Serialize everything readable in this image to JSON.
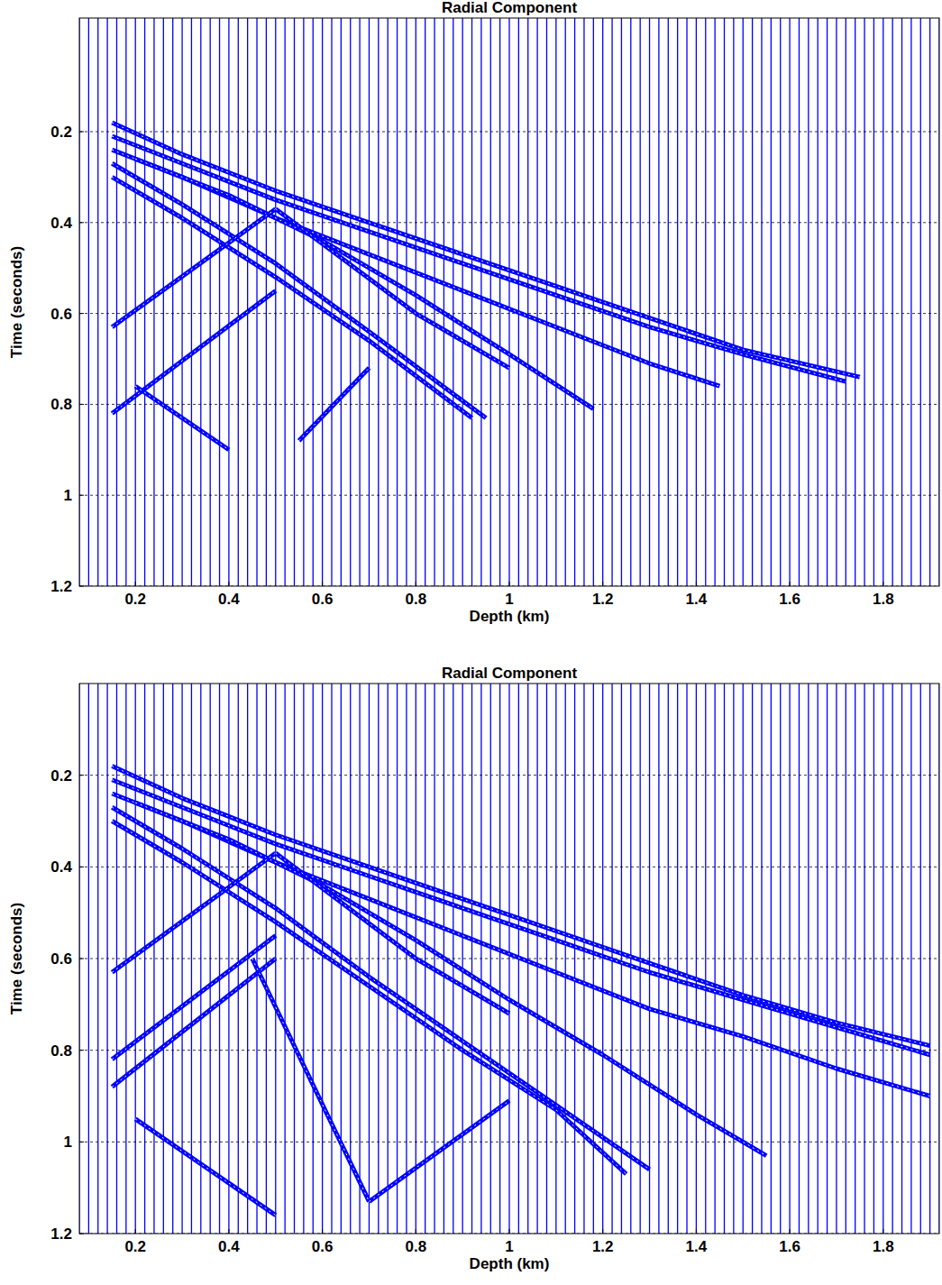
{
  "chart_data": [
    {
      "type": "line",
      "title": "Radial Component",
      "x_label": "Depth (km)",
      "y_label": "Time (seconds)",
      "xlim": [
        0.08,
        1.92
      ],
      "ylim": [
        -0.05,
        1.2
      ],
      "xticks": [
        0.2,
        0.4,
        0.6,
        0.8,
        1,
        1.2,
        1.4,
        1.6,
        1.8
      ],
      "yticks": [
        0.2,
        0.4,
        0.6,
        0.8,
        1,
        1.2
      ],
      "grid": true,
      "color": "#0000ff",
      "traces": [
        0.08,
        0.1,
        0.12,
        0.14,
        0.16,
        0.18,
        0.2,
        0.22,
        0.24,
        0.26,
        0.28,
        0.3,
        0.32,
        0.34,
        0.36,
        0.38,
        0.4,
        0.42,
        0.44,
        0.46,
        0.48,
        0.5,
        0.52,
        0.54,
        0.56,
        0.58,
        0.6,
        0.62,
        0.64,
        0.66,
        0.68,
        0.7,
        0.72,
        0.74,
        0.76,
        0.78,
        0.8,
        0.82,
        0.84,
        0.86,
        0.88,
        0.9,
        0.92,
        0.94,
        0.96,
        0.98,
        1,
        1.02,
        1.04,
        1.06,
        1.08,
        1.1,
        1.12,
        1.14,
        1.16,
        1.18,
        1.2,
        1.22,
        1.24,
        1.26,
        1.28,
        1.3,
        1.32,
        1.34,
        1.36,
        1.38,
        1.4,
        1.42,
        1.44,
        1.46,
        1.48,
        1.5,
        1.52,
        1.54,
        1.56,
        1.58,
        1.6,
        1.62,
        1.64,
        1.66,
        1.68,
        1.7,
        1.72,
        1.74,
        1.76,
        1.78,
        1.8,
        1.82,
        1.84,
        1.86,
        1.88,
        1.9,
        1.92
      ],
      "series": [
        {
          "x": [
            0.15,
            0.3,
            0.5,
            0.7,
            0.9,
            1.1,
            1.3,
            1.5,
            1.75
          ],
          "values": [
            0.18,
            0.25,
            0.33,
            0.4,
            0.47,
            0.54,
            0.61,
            0.68,
            0.74
          ]
        },
        {
          "x": [
            0.15,
            0.3,
            0.5,
            0.7,
            0.9,
            1.1,
            1.3,
            1.5,
            1.72
          ],
          "values": [
            0.21,
            0.27,
            0.35,
            0.42,
            0.49,
            0.56,
            0.63,
            0.69,
            0.75
          ]
        },
        {
          "x": [
            0.15,
            0.3,
            0.5,
            0.7,
            0.9,
            1.1,
            1.3,
            1.45
          ],
          "values": [
            0.24,
            0.3,
            0.39,
            0.47,
            0.55,
            0.63,
            0.71,
            0.76
          ]
        },
        {
          "x": [
            0.15,
            0.3,
            0.5,
            0.7,
            0.95
          ],
          "values": [
            0.27,
            0.36,
            0.49,
            0.64,
            0.83
          ]
        },
        {
          "x": [
            0.15,
            0.3,
            0.5,
            0.7,
            0.92
          ],
          "values": [
            0.3,
            0.39,
            0.52,
            0.66,
            0.83
          ]
        },
        {
          "x": [
            0.2,
            0.4,
            0.6,
            0.8,
            1,
            1.18
          ],
          "values": [
            0.26,
            0.34,
            0.44,
            0.56,
            0.69,
            0.81
          ]
        },
        {
          "x": [
            0.15,
            0.5
          ],
          "values": [
            0.63,
            0.37
          ]
        },
        {
          "x": [
            0.15,
            0.5
          ],
          "values": [
            0.82,
            0.55
          ]
        },
        {
          "x": [
            0.5,
            0.8,
            1
          ],
          "values": [
            0.37,
            0.6,
            0.72
          ]
        },
        {
          "x": [
            0.2,
            0.4
          ],
          "values": [
            0.76,
            0.9
          ]
        },
        {
          "x": [
            0.55,
            0.7
          ],
          "values": [
            0.88,
            0.72
          ]
        }
      ]
    },
    {
      "type": "line",
      "title": "Radial Component",
      "x_label": "Depth (km)",
      "y_label": "Time (seconds)",
      "xlim": [
        0.08,
        1.92
      ],
      "ylim": [
        0,
        1.2
      ],
      "xticks": [
        0.2,
        0.4,
        0.6,
        0.8,
        1,
        1.2,
        1.4,
        1.6,
        1.8
      ],
      "yticks": [
        0.2,
        0.4,
        0.6,
        0.8,
        1,
        1.2
      ],
      "grid": true,
      "color": "#0000ff",
      "traces": [
        0.08,
        0.1,
        0.12,
        0.14,
        0.16,
        0.18,
        0.2,
        0.22,
        0.24,
        0.26,
        0.28,
        0.3,
        0.32,
        0.34,
        0.36,
        0.38,
        0.4,
        0.42,
        0.44,
        0.46,
        0.48,
        0.5,
        0.52,
        0.54,
        0.56,
        0.58,
        0.6,
        0.62,
        0.64,
        0.66,
        0.68,
        0.7,
        0.72,
        0.74,
        0.76,
        0.78,
        0.8,
        0.82,
        0.84,
        0.86,
        0.88,
        0.9,
        0.92,
        0.94,
        0.96,
        0.98,
        1,
        1.02,
        1.04,
        1.06,
        1.08,
        1.1,
        1.12,
        1.14,
        1.16,
        1.18,
        1.2,
        1.22,
        1.24,
        1.26,
        1.28,
        1.3,
        1.32,
        1.34,
        1.36,
        1.38,
        1.4,
        1.42,
        1.44,
        1.46,
        1.48,
        1.5,
        1.52,
        1.54,
        1.56,
        1.58,
        1.6,
        1.62,
        1.64,
        1.66,
        1.68,
        1.7,
        1.72,
        1.74,
        1.76,
        1.78,
        1.8,
        1.82,
        1.84,
        1.86,
        1.88,
        1.9,
        1.92
      ],
      "series": [
        {
          "x": [
            0.15,
            0.3,
            0.5,
            0.7,
            0.9,
            1.1,
            1.3,
            1.5,
            1.7,
            1.9
          ],
          "values": [
            0.18,
            0.25,
            0.33,
            0.4,
            0.47,
            0.54,
            0.61,
            0.68,
            0.74,
            0.79
          ]
        },
        {
          "x": [
            0.15,
            0.3,
            0.5,
            0.7,
            0.9,
            1.1,
            1.3,
            1.5,
            1.7,
            1.9
          ],
          "values": [
            0.21,
            0.27,
            0.35,
            0.42,
            0.49,
            0.56,
            0.63,
            0.69,
            0.75,
            0.81
          ]
        },
        {
          "x": [
            0.15,
            0.3,
            0.5,
            0.7,
            0.9,
            1.1,
            1.3,
            1.5,
            1.7,
            1.9
          ],
          "values": [
            0.24,
            0.3,
            0.39,
            0.47,
            0.55,
            0.63,
            0.71,
            0.77,
            0.84,
            0.9
          ]
        },
        {
          "x": [
            0.15,
            0.3,
            0.5,
            0.7,
            0.9,
            1.1,
            1.3
          ],
          "values": [
            0.27,
            0.36,
            0.49,
            0.64,
            0.78,
            0.92,
            1.06
          ]
        },
        {
          "x": [
            0.15,
            0.3,
            0.5,
            0.7,
            0.9,
            1.1,
            1.25
          ],
          "values": [
            0.3,
            0.39,
            0.52,
            0.66,
            0.8,
            0.93,
            1.07
          ]
        },
        {
          "x": [
            0.2,
            0.4,
            0.6,
            0.8,
            1,
            1.2,
            1.4,
            1.55
          ],
          "values": [
            0.26,
            0.34,
            0.44,
            0.56,
            0.69,
            0.81,
            0.94,
            1.03
          ]
        },
        {
          "x": [
            0.15,
            0.5
          ],
          "values": [
            0.63,
            0.37
          ]
        },
        {
          "x": [
            0.15,
            0.5
          ],
          "values": [
            0.82,
            0.55
          ]
        },
        {
          "x": [
            0.15,
            0.5
          ],
          "values": [
            0.88,
            0.6
          ]
        },
        {
          "x": [
            0.5,
            0.8,
            1
          ],
          "values": [
            0.37,
            0.6,
            0.72
          ]
        },
        {
          "x": [
            0.45,
            0.7
          ],
          "values": [
            0.6,
            1.13
          ]
        },
        {
          "x": [
            0.7,
            1
          ],
          "values": [
            1.13,
            0.91
          ]
        },
        {
          "x": [
            0.2,
            0.5
          ],
          "values": [
            0.95,
            1.16
          ]
        }
      ]
    }
  ]
}
